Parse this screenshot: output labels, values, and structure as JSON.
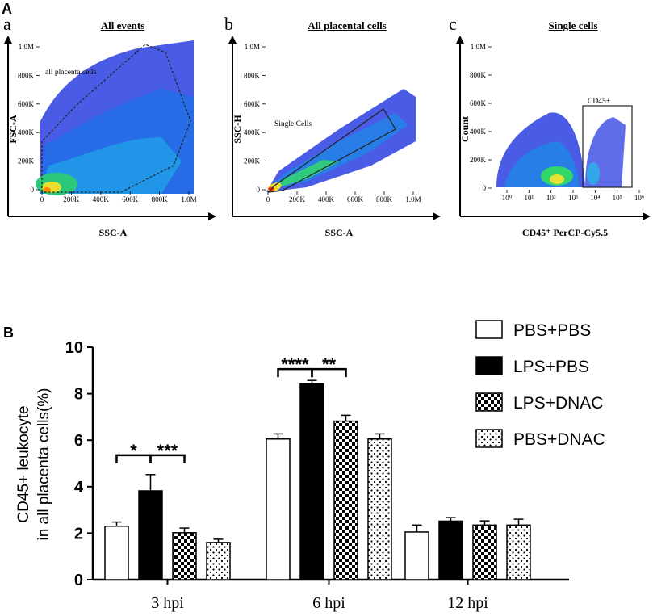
{
  "panel_labels": {
    "A": "A",
    "B": "B",
    "a": "a",
    "b": "b",
    "c": "c"
  },
  "chart_data": [
    {
      "type": "scatter",
      "id": "plot-a",
      "title": "All events",
      "xlabel": "SSC-A",
      "ylabel": "FSC-A",
      "xticks": [
        "0",
        "200K",
        "400K",
        "600K",
        "800K",
        "1.0M"
      ],
      "yticks": [
        "0",
        "200K",
        "400K",
        "600K",
        "800K",
        "1.0M"
      ],
      "gate_label": "all placenta cells"
    },
    {
      "type": "scatter",
      "id": "plot-b",
      "title": "All placental cells",
      "xlabel": "SSC-A",
      "ylabel": "SSC-H",
      "xticks": [
        "0",
        "200K",
        "400K",
        "600K",
        "800K",
        "1.0M"
      ],
      "yticks": [
        "0",
        "200K",
        "400K",
        "600K",
        "800K",
        "1.0M"
      ],
      "gate_label": "Single Cells"
    },
    {
      "type": "scatter",
      "id": "plot-c",
      "title": "Single cells",
      "xlabel": "CD45⁺ PerCP-Cy5.5",
      "ylabel": "Count",
      "xticks": [
        "10⁰",
        "10¹",
        "10²",
        "10³",
        "10⁴",
        "10⁵",
        "10⁶"
      ],
      "yticks": [
        "0",
        "200K",
        "400K",
        "600K",
        "800K",
        "1.0M"
      ],
      "gate_label": "CD45+"
    },
    {
      "type": "bar",
      "id": "plot-B",
      "ylabel_line1": "CD45+ leukocyte",
      "ylabel_line2": "in all placenta cells(%)",
      "ylim": [
        0,
        10
      ],
      "yticks": [
        "0",
        "2",
        "4",
        "6",
        "8",
        "10"
      ],
      "categories": [
        "3 hpi",
        "6 hpi",
        "12 hpi"
      ],
      "series": [
        {
          "name": "PBS+PBS",
          "pattern": "white",
          "values": [
            2.3,
            6.05,
            2.05
          ],
          "errors": [
            0.18,
            0.22,
            0.3
          ]
        },
        {
          "name": "LPS+PBS",
          "pattern": "black",
          "values": [
            3.82,
            8.42,
            2.52
          ],
          "errors": [
            0.7,
            0.15,
            0.15
          ]
        },
        {
          "name": "LPS+DNAC",
          "pattern": "checker",
          "values": [
            2.02,
            6.82,
            2.35
          ],
          "errors": [
            0.2,
            0.25,
            0.18
          ]
        },
        {
          "name": "PBS+DNAC",
          "pattern": "dots",
          "values": [
            1.6,
            6.05,
            2.35
          ],
          "errors": [
            0.14,
            0.22,
            0.25
          ]
        }
      ],
      "significance": [
        {
          "category": 0,
          "from": 0,
          "to": 1,
          "label": "*"
        },
        {
          "category": 0,
          "from": 1,
          "to": 2,
          "label": "***"
        },
        {
          "category": 1,
          "from": 0,
          "to": 1,
          "label": "****"
        },
        {
          "category": 1,
          "from": 1,
          "to": 2,
          "label": "**"
        }
      ]
    }
  ]
}
